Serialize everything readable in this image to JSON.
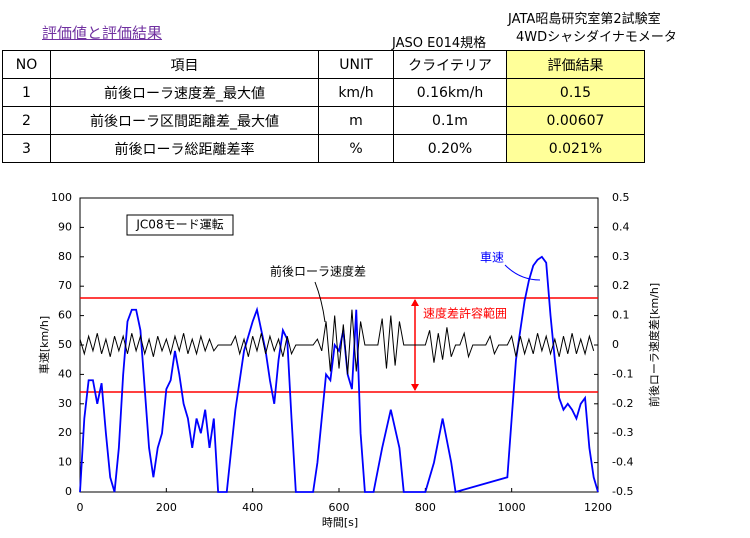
{
  "header": {
    "title": "評価値と評価結果",
    "standard": "JASO E014規格",
    "lab": "JATA昭島研究室第2試験室",
    "equipment": "4WDシャシダイナモメータ"
  },
  "table": {
    "columns": [
      "NO",
      "項目",
      "UNIT",
      "クライテリア",
      "評価結果"
    ],
    "rows": [
      [
        "1",
        "前後ローラ速度差_最大値",
        "km/h",
        "0.16km/h",
        "0.15"
      ],
      [
        "2",
        "前後ローラ区間距離差_最大値",
        "m",
        "0.1m",
        "0.00607"
      ],
      [
        "3",
        "前後ローラ総距離差率",
        "%",
        "0.20%",
        "0.021%"
      ]
    ]
  },
  "chart_data": {
    "type": "line",
    "xlabel": "時間[s]",
    "ylabel": "車速[km/h]",
    "y2label": "前後ローラ速度差[km/h]",
    "mode_label": "JC08モード運転",
    "xlim": [
      0,
      1200
    ],
    "xticks": [
      0,
      200,
      400,
      600,
      800,
      1000,
      1200
    ],
    "ylim": [
      0,
      100
    ],
    "yticks": [
      0,
      10,
      20,
      30,
      40,
      50,
      60,
      70,
      80,
      90,
      100
    ],
    "y2lim": [
      -0.5,
      0.5
    ],
    "y2ticks": [
      -0.5,
      -0.4,
      -0.3,
      -0.2,
      -0.1,
      0,
      0.1,
      0.2,
      0.3,
      0.4,
      0.5
    ],
    "limits": {
      "label": "速度差許容範囲",
      "color": "#ff0000",
      "values": [
        0.16,
        -0.16
      ]
    },
    "series": [
      {
        "name": "車速",
        "color": "#0000ff",
        "x": [
          0,
          10,
          20,
          30,
          40,
          50,
          60,
          70,
          80,
          90,
          100,
          110,
          120,
          130,
          140,
          150,
          160,
          170,
          180,
          190,
          200,
          210,
          220,
          230,
          240,
          250,
          260,
          270,
          280,
          290,
          300,
          310,
          320,
          340,
          360,
          380,
          400,
          410,
          420,
          430,
          440,
          450,
          460,
          470,
          480,
          490,
          500,
          540,
          550,
          560,
          570,
          580,
          590,
          600,
          610,
          620,
          630,
          640,
          650,
          660,
          680,
          700,
          720,
          740,
          750,
          800,
          820,
          840,
          860,
          870,
          990,
          1000,
          1010,
          1020,
          1030,
          1040,
          1050,
          1060,
          1070,
          1080,
          1090,
          1100,
          1110,
          1120,
          1130,
          1140,
          1150,
          1160,
          1170,
          1180,
          1190,
          1200
        ],
        "values": [
          0,
          25,
          38,
          38,
          30,
          37,
          20,
          5,
          0,
          15,
          40,
          58,
          62,
          62,
          55,
          35,
          15,
          5,
          15,
          20,
          35,
          38,
          48,
          40,
          30,
          25,
          15,
          25,
          20,
          28,
          15,
          25,
          0,
          0,
          28,
          48,
          58,
          62,
          55,
          48,
          38,
          30,
          45,
          55,
          52,
          25,
          0,
          0,
          10,
          25,
          40,
          38,
          50,
          48,
          55,
          40,
          35,
          62,
          20,
          0,
          0,
          15,
          28,
          15,
          0,
          0,
          10,
          25,
          10,
          0,
          5,
          25,
          45,
          55,
          65,
          72,
          77,
          79,
          80,
          78,
          60,
          45,
          32,
          28,
          30,
          28,
          25,
          30,
          32,
          15,
          5,
          0
        ]
      },
      {
        "name": "前後ローラ速度差",
        "color": "#000000",
        "axis": "y2",
        "x": [
          0,
          10,
          20,
          30,
          40,
          50,
          60,
          70,
          80,
          90,
          100,
          110,
          120,
          130,
          140,
          150,
          160,
          170,
          180,
          190,
          200,
          210,
          220,
          230,
          240,
          250,
          260,
          270,
          280,
          290,
          300,
          310,
          320,
          330,
          340,
          350,
          360,
          370,
          380,
          390,
          400,
          410,
          420,
          430,
          440,
          450,
          460,
          470,
          480,
          490,
          500,
          510,
          520,
          530,
          540,
          550,
          560,
          570,
          580,
          590,
          600,
          610,
          620,
          630,
          640,
          650,
          660,
          670,
          680,
          690,
          700,
          710,
          720,
          730,
          740,
          750,
          760,
          770,
          780,
          790,
          800,
          810,
          820,
          830,
          840,
          850,
          860,
          870,
          880,
          890,
          900,
          910,
          920,
          930,
          940,
          950,
          960,
          970,
          980,
          990,
          1000,
          1010,
          1020,
          1030,
          1040,
          1050,
          1060,
          1070,
          1080,
          1090,
          1100,
          1110,
          1120,
          1130,
          1140,
          1150,
          1160,
          1170,
          1180,
          1190
        ],
        "values": [
          0.02,
          -0.03,
          0.03,
          -0.02,
          0.04,
          -0.03,
          0.02,
          -0.04,
          0.03,
          -0.02,
          0.03,
          -0.03,
          0.04,
          -0.02,
          0.03,
          -0.03,
          0.02,
          -0.04,
          0.03,
          -0.02,
          0.02,
          -0.03,
          0.03,
          -0.02,
          0.04,
          -0.03,
          0.02,
          -0.03,
          0.03,
          -0.02,
          0.02,
          -0.02,
          0,
          0,
          0,
          0,
          0.03,
          -0.03,
          0.02,
          -0.04,
          0.03,
          -0.02,
          0.04,
          -0.03,
          0.03,
          -0.02,
          0.02,
          -0.04,
          0.03,
          -0.03,
          0,
          0,
          0,
          0,
          0,
          0.02,
          -0.02,
          0.08,
          -0.09,
          0.1,
          -0.08,
          0.07,
          -0.1,
          0.12,
          -0.09,
          0.08,
          0,
          0,
          0,
          0,
          0.09,
          -0.08,
          0.1,
          -0.07,
          0.08,
          0,
          0,
          0,
          0,
          0,
          0,
          0.05,
          -0.06,
          0.04,
          -0.05,
          0.06,
          -0.04,
          0,
          0,
          0.04,
          -0.04,
          0,
          0,
          0,
          0,
          0.03,
          -0.03,
          0,
          0,
          0,
          0.03,
          -0.04,
          0.03,
          -0.03,
          0.02,
          -0.03,
          0.04,
          -0.02,
          0.03,
          -0.03,
          0.02,
          -0.04,
          0.03,
          -0.03,
          0.04,
          -0.03,
          0.02,
          -0.03,
          0.03,
          -0.02
        ]
      }
    ]
  }
}
